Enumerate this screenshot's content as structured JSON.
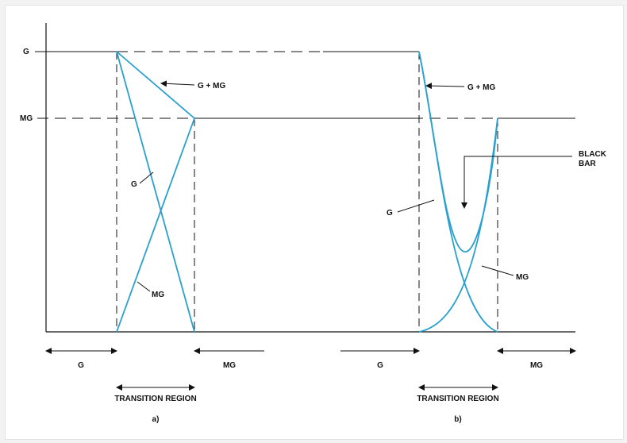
{
  "axis_labels": {
    "g": "G",
    "mg": "MG"
  },
  "panel_a": {
    "caption": "a)",
    "region_label": "TRANSITION REGION",
    "left_label": "G",
    "right_label": "MG",
    "curve_labels": {
      "sum": "G + MG",
      "g": "G",
      "mg": "MG"
    }
  },
  "panel_b": {
    "caption": "b)",
    "region_label": "TRANSITION REGION",
    "left_label": "G",
    "right_label": "MG",
    "curve_labels": {
      "sum": "G + MG",
      "g": "G",
      "mg": "MG"
    },
    "dip_label_line1": "BLACK",
    "dip_label_line2": "BAR"
  },
  "colors": {
    "curve": "#2aa0cf",
    "ink": "#111111"
  }
}
